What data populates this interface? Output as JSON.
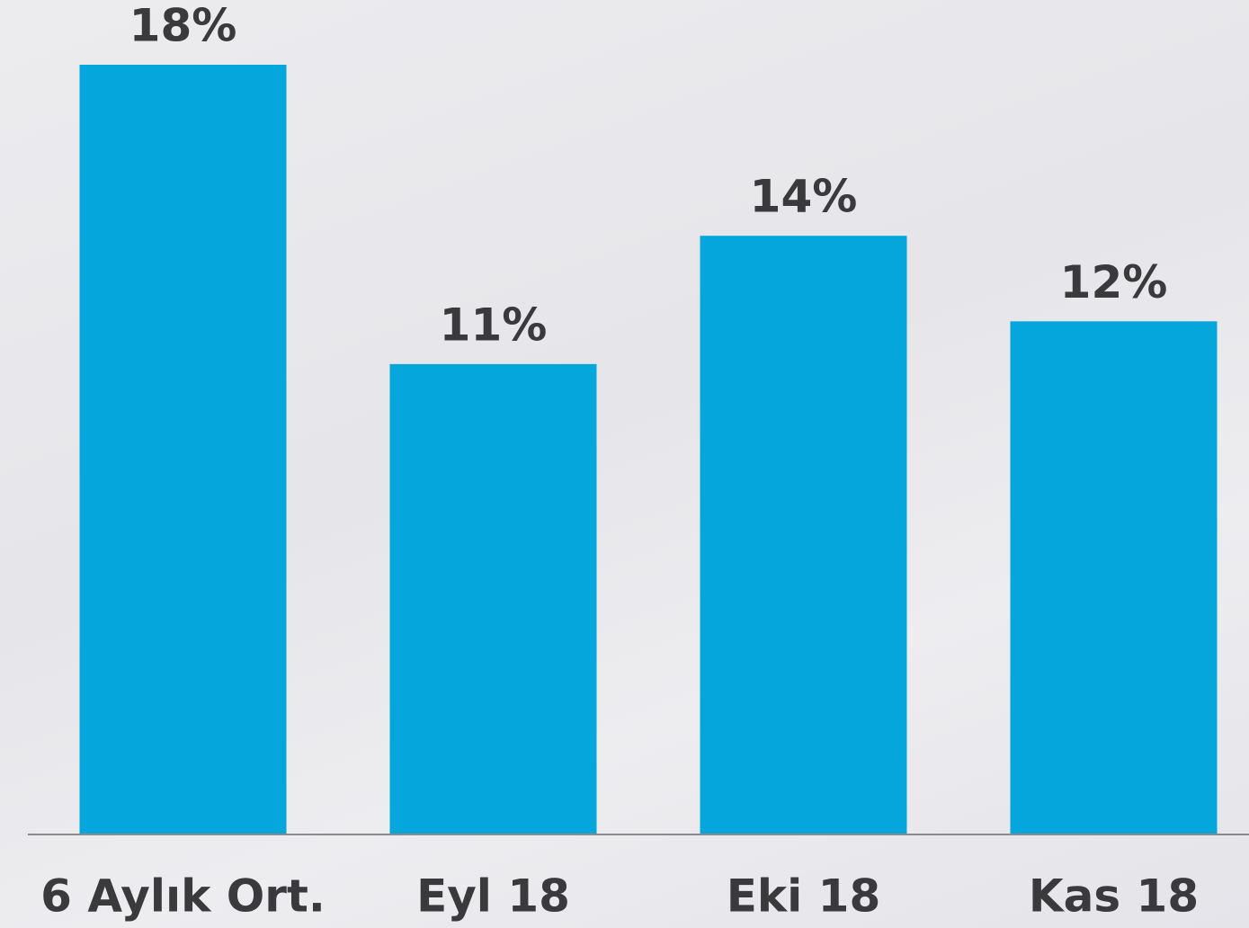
{
  "chart_data": {
    "type": "bar",
    "categories": [
      "6 Aylık Ort.",
      "Eyl 18",
      "Eki 18",
      "Kas 18"
    ],
    "values": [
      18,
      11,
      14,
      12
    ],
    "value_labels": [
      "18%",
      "11%",
      "14%",
      "12%"
    ],
    "color": "#04a6dc",
    "ylim": [
      0,
      18
    ]
  }
}
